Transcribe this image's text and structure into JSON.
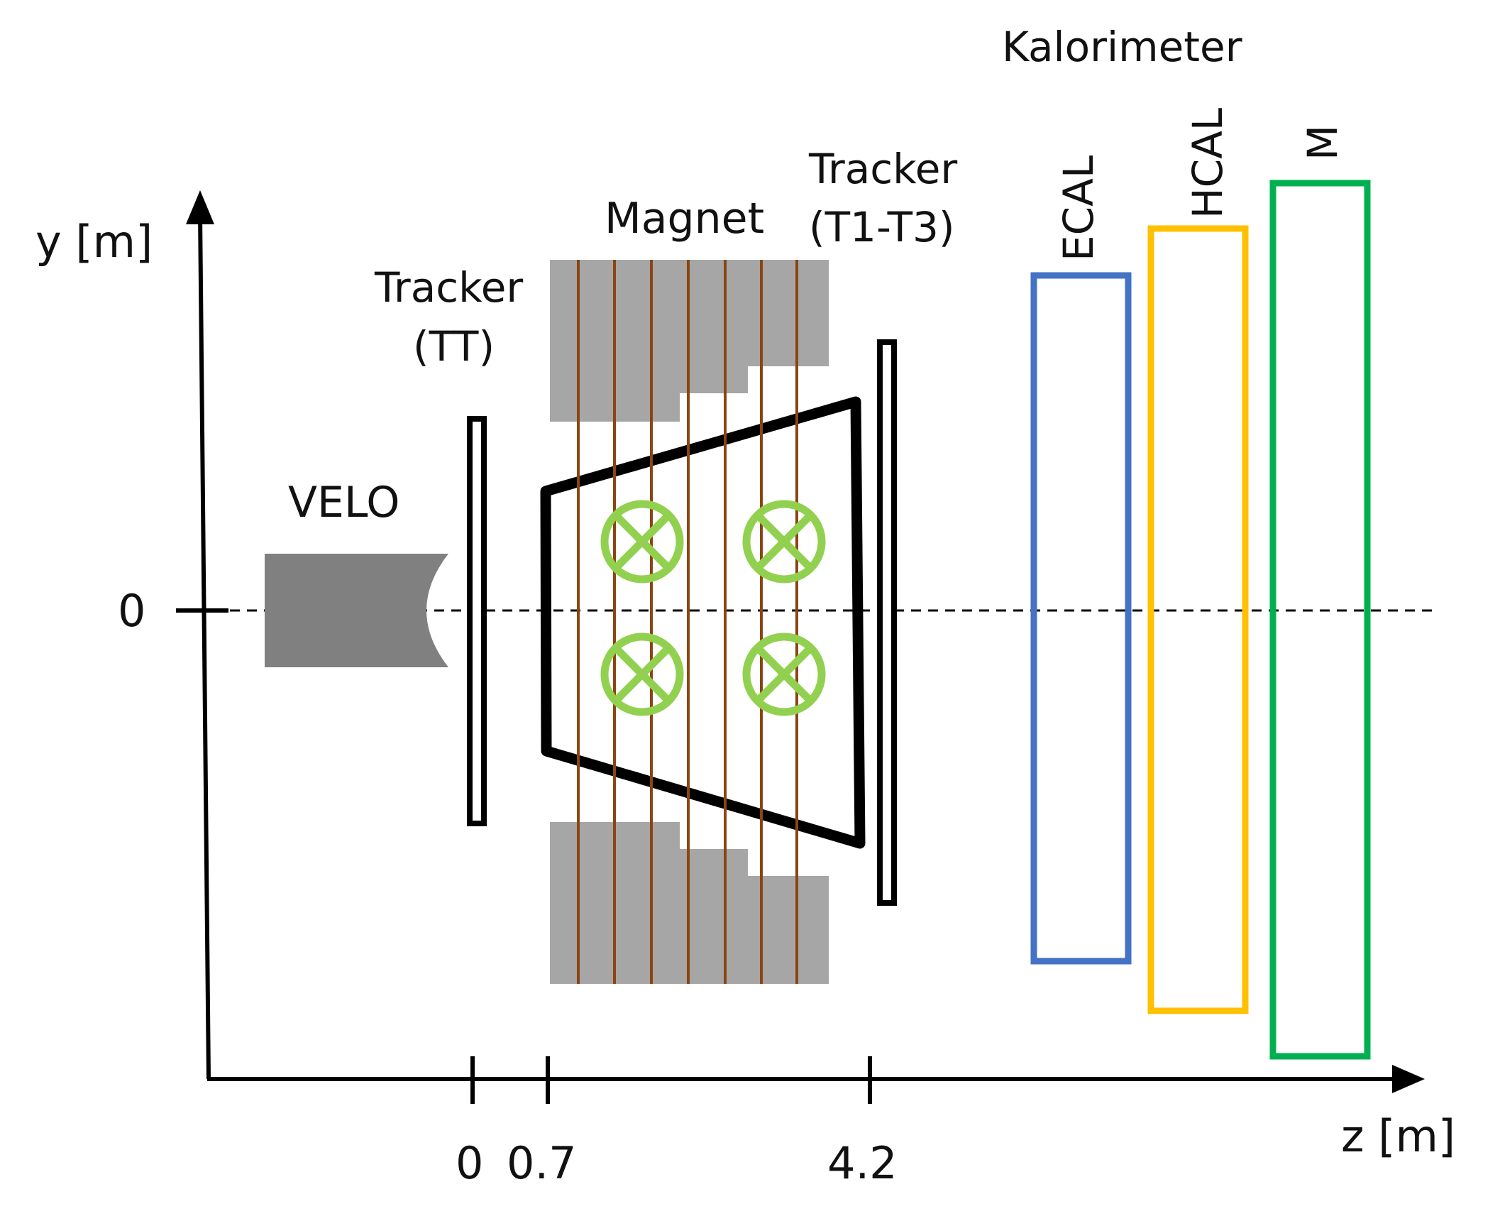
{
  "axes": {
    "y_label": "y [m]",
    "z_label": "z [m]",
    "y_origin_label": "0",
    "z_ticks": [
      "0",
      "0.7",
      "4.2"
    ]
  },
  "components": {
    "velo": {
      "label": "VELO"
    },
    "tt": {
      "line1": "Tracker",
      "line2": "(TT)"
    },
    "magnet": {
      "label": "Magnet"
    },
    "t_stations": {
      "line1": "Tracker",
      "line2": "(T1-T3)"
    },
    "kalorimeter": {
      "label": "Kalorimeter"
    },
    "ecal": {
      "label": "ECAL"
    },
    "hcal": {
      "label": "HCAL"
    },
    "muon": {
      "label": "M"
    }
  },
  "colors": {
    "ecal": "#4472c4",
    "hcal": "#ffc000",
    "muon": "#00b050",
    "field_symbol": "#92d050",
    "coil_wire": "#8b4513",
    "magnet_yoke": "#a6a6a6",
    "velo": "#808080"
  }
}
